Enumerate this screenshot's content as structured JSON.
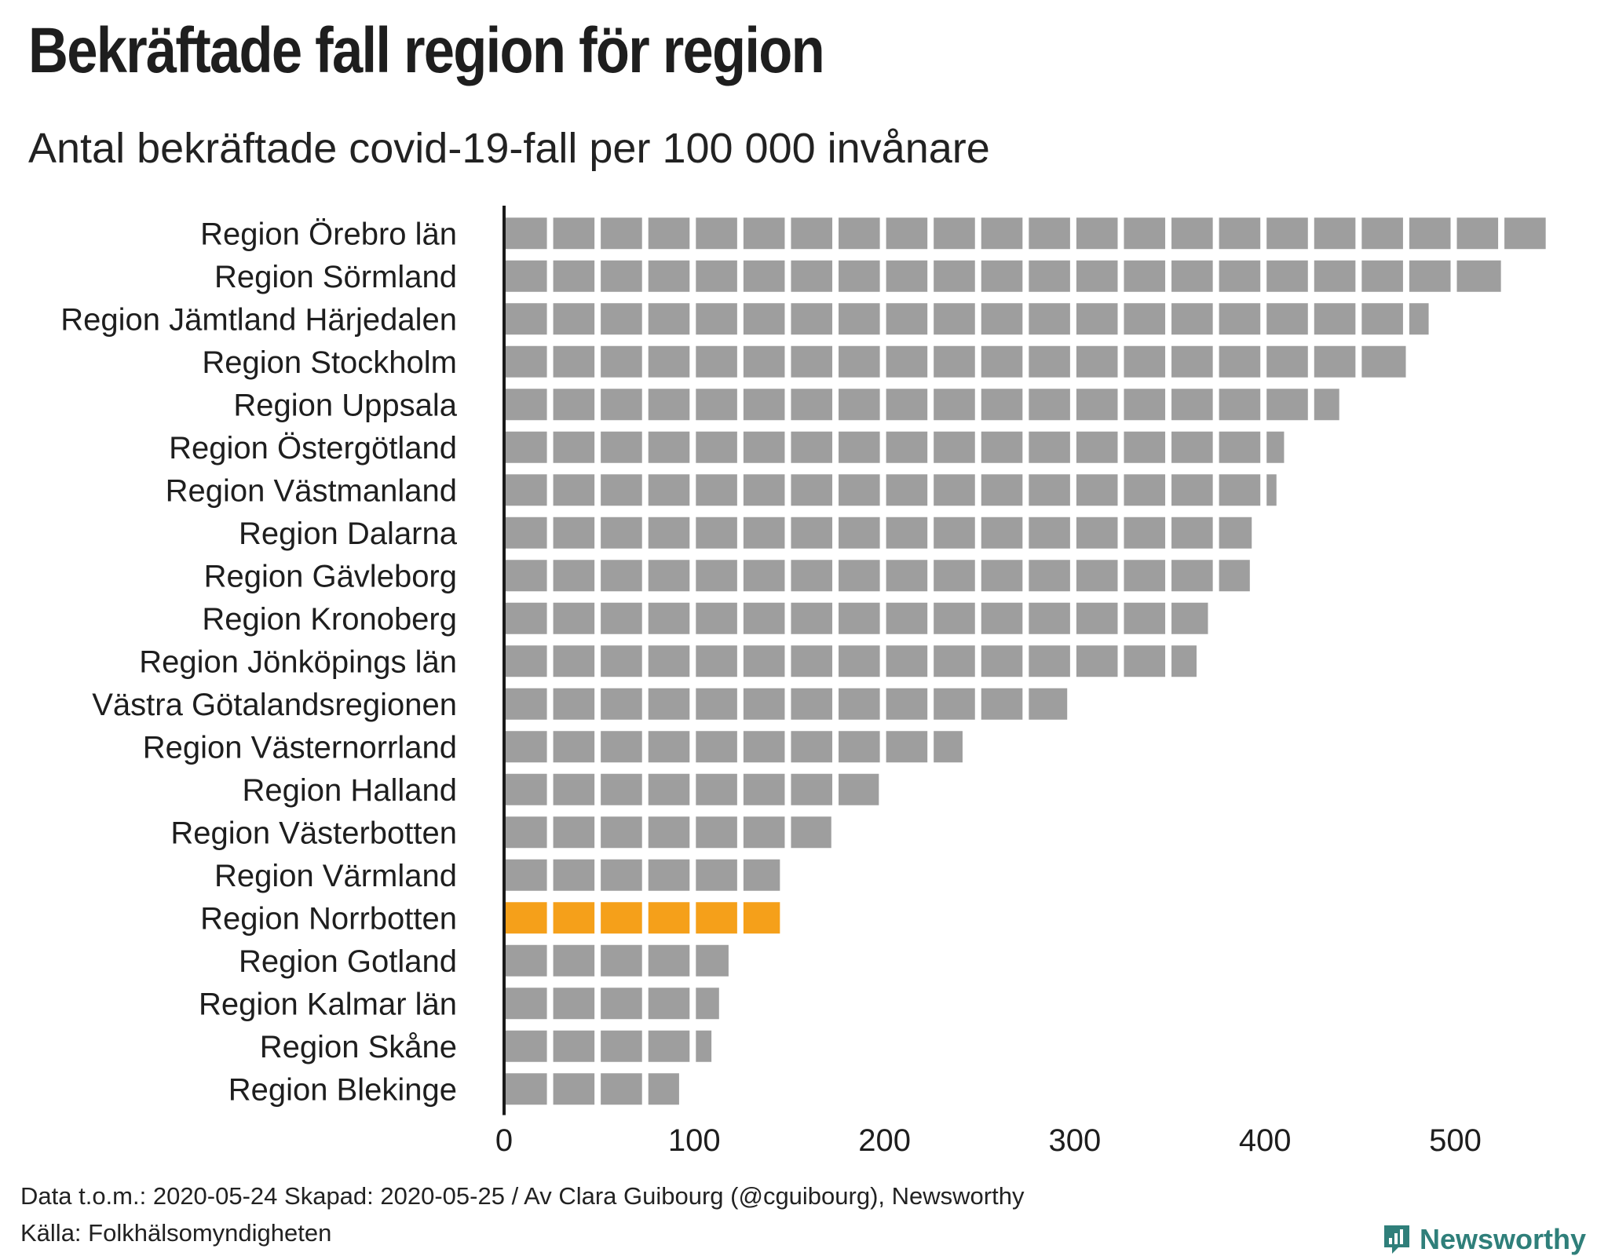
{
  "title": "Bekräftade fall region för region",
  "subtitle": "Antal bekräftade covid-19-fall per 100 000 invånare",
  "footer": {
    "line1": "Data t.o.m.: 2020-05-24 Skapad: 2020-05-25 / Av Clara Guibourg (@cguibourg), Newsworthy",
    "line2": "Källa: Folkhälsomyndigheten"
  },
  "brand": {
    "name": "Newsworthy",
    "icon": "newsworthy-logo-icon",
    "color": "#2f7f7a"
  },
  "colors": {
    "default": "#9e9e9e",
    "highlight": "#f5a01a",
    "axis": "#1a1a1a"
  },
  "chart_data": {
    "type": "bar",
    "orientation": "horizontal",
    "unit_block": 25,
    "categories": [
      "Region Örebro län",
      "Region Sörmland",
      "Region Jämtland Härjedalen",
      "Region Stockholm",
      "Region Uppsala",
      "Region Östergötland",
      "Region Västmanland",
      "Region Dalarna",
      "Region Gävleborg",
      "Region Kronoberg",
      "Region Jönköpings län",
      "Västra Götalandsregionen",
      "Region Västernorrland",
      "Region Halland",
      "Region Västerbotten",
      "Region Värmland",
      "Region Norrbotten",
      "Region Gotland",
      "Region Kalmar län",
      "Region Skåne",
      "Region Blekinge"
    ],
    "values": [
      550,
      524,
      486,
      474,
      439,
      410,
      406,
      393,
      392,
      370,
      364,
      296,
      241,
      197,
      172,
      145,
      145,
      118,
      113,
      109,
      92
    ],
    "highlight": "Region Norrbotten",
    "xlim": [
      0,
      550
    ],
    "xticks": [
      0,
      100,
      200,
      300,
      400,
      500
    ],
    "xlabel": "",
    "ylabel": "",
    "grid": false,
    "legend": "none"
  }
}
